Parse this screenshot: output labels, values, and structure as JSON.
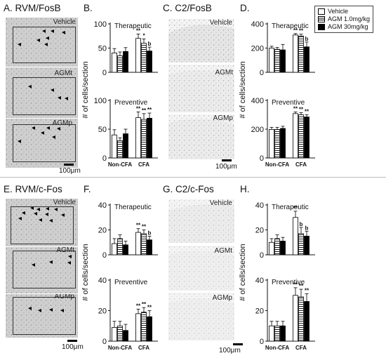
{
  "panels": {
    "A": "A. RVM/FosB",
    "B": "B.",
    "C": "C. C2/FosB",
    "D": "D.",
    "E": "E. RVM/c-Fos",
    "F": "F.",
    "G": "G. C2/c-Fos",
    "H": "H."
  },
  "image_labels": {
    "vehicle": "Vehicle",
    "agmt": "AGMt",
    "agmp": "AGMp"
  },
  "scale": "100μm",
  "legend": {
    "entries": [
      {
        "name": "Vehicle",
        "fill": "white"
      },
      {
        "name": "AGM 1.0mg/kg",
        "fill": "hatch"
      },
      {
        "name": "AGM 30mg/kg",
        "fill": "black"
      }
    ]
  },
  "colors": {
    "axis": "#111111",
    "black_bar": "#000000",
    "white_bar": "#ffffff"
  },
  "chart_data": [
    {
      "id": "B-therapeutic",
      "type": "bar",
      "title": "Therapeutic",
      "ylabel": "# of cells/section",
      "ylim": [
        0,
        100
      ],
      "yticks": [
        0,
        50,
        100
      ],
      "categories": [
        "Non-CFA",
        "CFA"
      ],
      "series": [
        {
          "name": "Vehicle",
          "values": [
            40,
            70
          ],
          "errors": [
            9,
            9
          ]
        },
        {
          "name": "AGM 1.0mg/kg",
          "values": [
            34,
            60
          ],
          "errors": [
            8,
            9
          ]
        },
        {
          "name": "AGM 30mg/kg",
          "values": [
            43,
            44
          ],
          "errors": [
            8,
            8
          ]
        }
      ],
      "annotations": [
        [
          "**",
          "*",
          "b"
        ]
      ]
    },
    {
      "id": "B-preventive",
      "type": "bar",
      "title": "Preventive",
      "ylabel": "# of cells/section",
      "ylim": [
        0,
        100
      ],
      "yticks": [
        0,
        50,
        100
      ],
      "categories": [
        "Non-CFA",
        "CFA"
      ],
      "series": [
        {
          "name": "Vehicle",
          "values": [
            40,
            70
          ],
          "errors": [
            9,
            10
          ]
        },
        {
          "name": "AGM 1.0mg/kg",
          "values": [
            30,
            67
          ],
          "errors": [
            5,
            10
          ]
        },
        {
          "name": "AGM 30mg/kg",
          "values": [
            42,
            69
          ],
          "errors": [
            8,
            9
          ]
        }
      ],
      "annotations": [
        [
          "**",
          "**",
          "**"
        ]
      ]
    },
    {
      "id": "D-therapeutic",
      "type": "bar",
      "title": "Therapeutic",
      "ylabel": "# of cells/section",
      "ylim": [
        0,
        400
      ],
      "yticks": [
        0,
        200,
        400
      ],
      "categories": [
        "Non-CFA",
        "CFA"
      ],
      "series": [
        {
          "name": "Vehicle",
          "values": [
            200,
            308
          ],
          "errors": [
            15,
            12
          ]
        },
        {
          "name": "AGM 1.0mg/kg",
          "values": [
            190,
            300
          ],
          "errors": [
            15,
            15
          ]
        },
        {
          "name": "AGM 30mg/kg",
          "values": [
            185,
            210
          ],
          "errors": [
            45,
            40
          ]
        }
      ],
      "annotations": [
        [
          "**",
          "**",
          "b"
        ]
      ]
    },
    {
      "id": "D-preventive",
      "type": "bar",
      "title": "Preventive",
      "ylabel": "# of cells/section",
      "ylim": [
        0,
        400
      ],
      "yticks": [
        0,
        200,
        400
      ],
      "categories": [
        "Non-CFA",
        "CFA"
      ],
      "series": [
        {
          "name": "Vehicle",
          "values": [
            198,
            308
          ],
          "errors": [
            15,
            12
          ]
        },
        {
          "name": "AGM 1.0mg/kg",
          "values": [
            198,
            300
          ],
          "errors": [
            15,
            15
          ]
        },
        {
          "name": "AGM 30mg/kg",
          "values": [
            205,
            285
          ],
          "errors": [
            15,
            15
          ]
        }
      ],
      "annotations": [
        [
          "**",
          "**",
          "**"
        ]
      ]
    },
    {
      "id": "F-therapeutic",
      "type": "bar",
      "title": "Therapeutic",
      "ylabel": "# of cells/section",
      "ylim": [
        0,
        40
      ],
      "yticks": [
        0,
        20,
        40
      ],
      "categories": [
        "Non-CFA",
        "CFA"
      ],
      "series": [
        {
          "name": "Vehicle",
          "values": [
            9,
            18
          ],
          "errors": [
            4,
            3
          ]
        },
        {
          "name": "AGM 1.0mg/kg",
          "values": [
            13,
            17
          ],
          "errors": [
            3,
            3
          ]
        },
        {
          "name": "AGM 30mg/kg",
          "values": [
            8,
            12
          ],
          "errors": [
            3,
            3
          ]
        }
      ],
      "annotations": [
        [
          "**",
          "**",
          "b"
        ]
      ]
    },
    {
      "id": "F-preventive",
      "type": "bar",
      "title": "Preventive",
      "ylabel": "# of cells/section",
      "ylim": [
        0,
        40
      ],
      "yticks": [
        0,
        20,
        40
      ],
      "categories": [
        "Non-CFA",
        "CFA"
      ],
      "series": [
        {
          "name": "Vehicle",
          "values": [
            9,
            18
          ],
          "errors": [
            4,
            3
          ]
        },
        {
          "name": "AGM 1.0mg/kg",
          "values": [
            10,
            19
          ],
          "errors": [
            3,
            3
          ]
        },
        {
          "name": "AGM 30mg/kg",
          "values": [
            7,
            16
          ],
          "errors": [
            4,
            4
          ]
        }
      ],
      "annotations": [
        [
          "**",
          "**",
          "**"
        ]
      ]
    },
    {
      "id": "H-therapeutic",
      "type": "bar",
      "title": "Therapeutic",
      "ylabel": "# of cells/section",
      "ylim": [
        0,
        40
      ],
      "yticks": [
        0,
        20,
        40
      ],
      "categories": [
        "Non-CFA",
        "CFA"
      ],
      "series": [
        {
          "name": "Vehicle",
          "values": [
            10,
            30
          ],
          "errors": [
            3,
            5
          ]
        },
        {
          "name": "AGM 1.0mg/kg",
          "values": [
            13,
            17
          ],
          "errors": [
            3,
            5
          ]
        },
        {
          "name": "AGM 30mg/kg",
          "values": [
            11,
            15
          ],
          "errors": [
            3,
            4
          ]
        }
      ],
      "annotations": [
        [
          "**",
          "b",
          "b"
        ]
      ]
    },
    {
      "id": "H-preventive",
      "type": "bar",
      "title": "Preventive",
      "ylabel": "# of cells/section",
      "ylim": [
        0,
        40
      ],
      "yticks": [
        0,
        20,
        40
      ],
      "categories": [
        "Non-CFA",
        "CFA"
      ],
      "series": [
        {
          "name": "Vehicle",
          "values": [
            10,
            30
          ],
          "errors": [
            3,
            5
          ]
        },
        {
          "name": "AGM 1.0mg/kg",
          "values": [
            10,
            29
          ],
          "errors": [
            3,
            5
          ]
        },
        {
          "name": "AGM 30mg/kg",
          "values": [
            10,
            26
          ],
          "errors": [
            3,
            5
          ]
        }
      ],
      "annotations": [
        [
          "**",
          "**",
          "**"
        ]
      ]
    }
  ]
}
